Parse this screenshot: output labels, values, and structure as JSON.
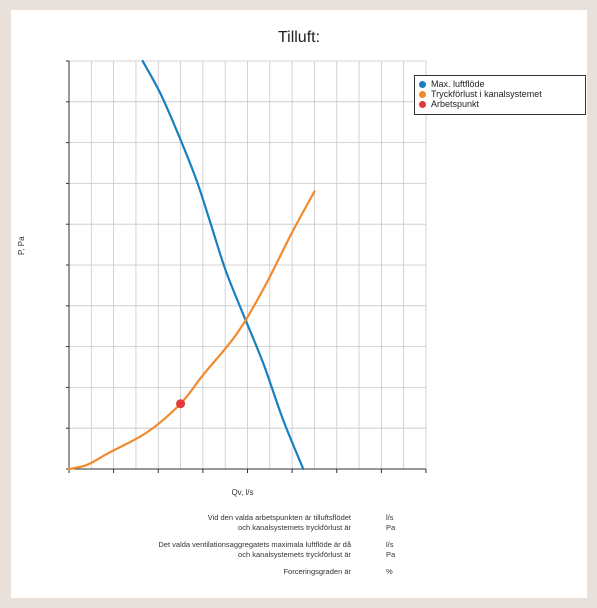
{
  "title": "Tilluft:",
  "legend": {
    "items": [
      {
        "label": "Max. luftflöde",
        "color": "#1a7fc1"
      },
      {
        "label": "Tryckförlust i kanalsystemet",
        "color": "#f08a2c"
      },
      {
        "label": "Arbetspunkt",
        "color": "#e03a3a"
      }
    ]
  },
  "axes": {
    "ylabel": "P, Pa",
    "xlabel": "Qv, l/s"
  },
  "results": [
    {
      "text": "Vid den valda arbetspunkten är tilluftsflödet",
      "unit": "l/s"
    },
    {
      "text": "och kanalsystemets tryckförlust är",
      "unit": "Pa"
    },
    {
      "text": "Det valda ventilationsaggregatets maximala luftflöde är då",
      "unit": "l/s"
    },
    {
      "text": "och kanalsystemets tryckförlust är",
      "unit": "Pa"
    },
    {
      "text": "Forceringsgraden är",
      "unit": "%"
    }
  ],
  "chart_data": {
    "type": "line",
    "title": "Tilluft:",
    "xlabel": "Qv, l/s",
    "ylabel": "P, Pa",
    "xlim": [
      0,
      16
    ],
    "ylim": [
      0,
      10
    ],
    "grid": true,
    "legend_position": "top-right",
    "series": [
      {
        "name": "Max. luftflöde",
        "color": "#1a7fc1",
        "x": [
          3.3,
          4.1,
          4.9,
          5.7,
          6.3,
          7.0,
          7.8,
          8.7,
          9.6,
          10.5
        ],
        "y": [
          10.0,
          9.2,
          8.2,
          7.1,
          6.1,
          4.9,
          3.8,
          2.6,
          1.2,
          0.0
        ]
      },
      {
        "name": "Tryckförlust i kanalsystemet",
        "color": "#f08a2c",
        "x": [
          0.0,
          0.8,
          1.8,
          3.5,
          5.0,
          6.0,
          7.5,
          8.7,
          10.0,
          11.0
        ],
        "y": [
          0.0,
          0.1,
          0.4,
          0.9,
          1.6,
          2.3,
          3.3,
          4.4,
          5.8,
          6.8
        ]
      },
      {
        "name": "Arbetspunkt",
        "color": "#e03a3a",
        "x": [
          5.0
        ],
        "y": [
          1.6
        ]
      }
    ]
  }
}
